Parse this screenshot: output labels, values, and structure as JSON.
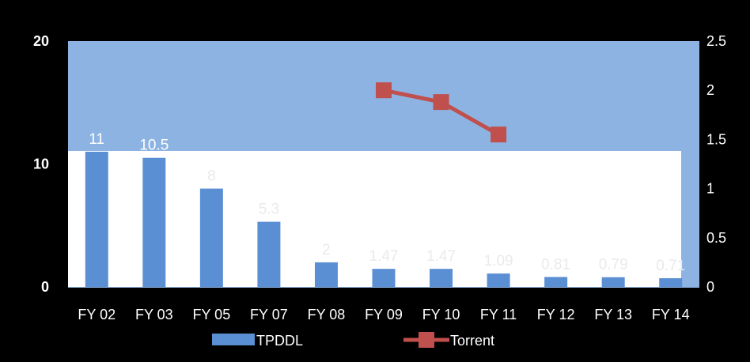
{
  "chart_data": {
    "type": "bar",
    "title": "",
    "xlabel": "",
    "ylabel": "",
    "categories": [
      "FY 02",
      "FY 03",
      "FY 05",
      "FY 07",
      "FY 08",
      "FY 09",
      "FY 10",
      "FY 11",
      "FY 12",
      "FY 13",
      "FY 14"
    ],
    "series": [
      {
        "name": "TPDDL",
        "type": "bar",
        "axis": "left",
        "color": "#5b8fd4",
        "values": [
          11,
          10.5,
          8,
          5.3,
          2,
          1.47,
          1.47,
          1.09,
          0.81,
          0.79,
          0.71
        ],
        "labels": [
          "11",
          "10.5",
          "8",
          "5.3",
          "2",
          "1.47",
          "1.47",
          "1.09",
          "0.81",
          "0.79",
          "0.71"
        ]
      },
      {
        "name": "Torrent",
        "type": "line",
        "axis": "right",
        "color": "#c0504d",
        "values": [
          null,
          null,
          null,
          null,
          null,
          2.0,
          1.88,
          1.55,
          null,
          null,
          null
        ]
      }
    ],
    "y_left": {
      "min": 0,
      "max": 20,
      "ticks": [
        "0",
        "10",
        "20"
      ]
    },
    "y_right": {
      "min": 0,
      "max": 2.5,
      "ticks": [
        "0",
        "0.5",
        "1",
        "1.5",
        "2",
        "2.5"
      ]
    },
    "grid": false,
    "legend_position": "bottom"
  }
}
